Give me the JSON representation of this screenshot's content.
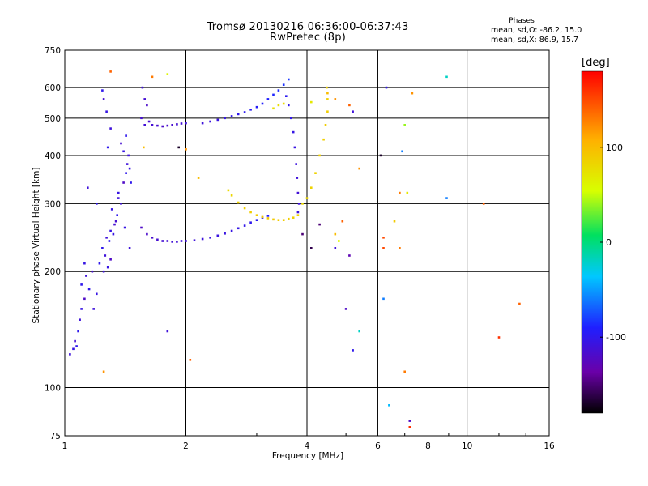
{
  "chart_data": {
    "type": "scatter",
    "title": "Tromsø 20130216 06:36:00-06:37:43",
    "subtitle": "RwPretec (8p)",
    "xlabel": "Frequency [MHz]",
    "ylabel": "Stationary phase Virtual Height [km]",
    "x_scale": "log",
    "y_scale": "log",
    "xlim": [
      1,
      16
    ],
    "ylim": [
      75,
      750
    ],
    "x_ticks": [
      1,
      2,
      4,
      6,
      8,
      10,
      16
    ],
    "y_ticks": [
      75,
      100,
      200,
      300,
      400,
      500,
      600,
      750
    ],
    "grid": true,
    "phase_stats": {
      "title": "Phases",
      "o_line": "mean, sd,O: -86.2, 15.0",
      "x_line": "mean, sd,X: 86.9, 15.7"
    },
    "colorbar": {
      "unit": "[deg]",
      "range": [
        -180,
        180
      ],
      "ticks": [
        100,
        0,
        -100
      ]
    },
    "series": [
      {
        "points": [
          [
            1.03,
            122,
            -110
          ],
          [
            1.05,
            126,
            -105
          ],
          [
            1.07,
            128,
            -100
          ],
          [
            1.06,
            132,
            -115
          ],
          [
            1.08,
            140,
            -100
          ],
          [
            1.09,
            150,
            -110
          ],
          [
            1.1,
            160,
            -105
          ],
          [
            1.12,
            170,
            -120
          ],
          [
            1.1,
            185,
            -100
          ],
          [
            1.13,
            195,
            -110
          ],
          [
            1.12,
            210,
            -105
          ],
          [
            1.15,
            180,
            -100
          ],
          [
            1.18,
            160,
            -110
          ],
          [
            1.2,
            175,
            -105
          ],
          [
            1.17,
            200,
            -115
          ],
          [
            1.22,
            210,
            -100
          ],
          [
            1.25,
            200,
            -110
          ],
          [
            1.28,
            205,
            -105
          ],
          [
            1.3,
            215,
            -120
          ],
          [
            1.24,
            230,
            -100
          ],
          [
            1.27,
            245,
            -110
          ],
          [
            1.3,
            255,
            -105
          ],
          [
            1.33,
            265,
            -115
          ],
          [
            1.35,
            280,
            -100
          ],
          [
            1.38,
            300,
            -110
          ],
          [
            1.36,
            320,
            -105
          ],
          [
            1.4,
            340,
            -120
          ],
          [
            1.42,
            360,
            -100
          ],
          [
            1.43,
            380,
            -110
          ],
          [
            1.4,
            410,
            -105
          ],
          [
            1.38,
            430,
            -115
          ],
          [
            1.42,
            450,
            -100
          ],
          [
            1.44,
            400,
            -110
          ],
          [
            1.45,
            370,
            -105
          ],
          [
            1.32,
            250,
            -105
          ],
          [
            1.26,
            220,
            -110
          ],
          [
            1.29,
            240,
            -100
          ],
          [
            1.34,
            270,
            -115
          ],
          [
            1.31,
            290,
            -105
          ],
          [
            1.36,
            310,
            -110
          ],
          [
            1.28,
            420,
            -100
          ],
          [
            1.3,
            470,
            -110
          ],
          [
            1.27,
            520,
            -105
          ],
          [
            1.25,
            560,
            -115
          ],
          [
            1.24,
            590,
            -100
          ],
          [
            1.14,
            330,
            -110
          ],
          [
            1.2,
            300,
            -100
          ],
          [
            1.45,
            230,
            -110
          ],
          [
            1.41,
            260,
            -105
          ],
          [
            1.46,
            340,
            -100
          ]
        ]
      },
      {
        "points": [
          [
            1.55,
            260,
            -120
          ],
          [
            1.6,
            250,
            -118
          ],
          [
            1.65,
            245,
            -116
          ],
          [
            1.7,
            242,
            -115
          ],
          [
            1.75,
            240,
            -114
          ],
          [
            1.8,
            240,
            -113
          ],
          [
            1.85,
            239,
            -112
          ],
          [
            1.9,
            239,
            -112
          ],
          [
            1.95,
            240,
            -111
          ],
          [
            2.0,
            240,
            -110
          ],
          [
            2.1,
            241,
            -110
          ],
          [
            2.2,
            243,
            -109
          ],
          [
            2.3,
            245,
            -108
          ],
          [
            2.4,
            248,
            -107
          ],
          [
            2.5,
            251,
            -106
          ],
          [
            2.6,
            255,
            -105
          ],
          [
            2.7,
            259,
            -104
          ],
          [
            2.8,
            263,
            -102
          ],
          [
            2.9,
            268,
            -100
          ],
          [
            3.0,
            272,
            -98
          ],
          [
            3.1,
            276,
            -96
          ],
          [
            3.2,
            279,
            -94
          ]
        ]
      },
      {
        "points": [
          [
            2.55,
            325,
            80
          ],
          [
            2.6,
            315,
            82
          ],
          [
            2.7,
            302,
            84
          ],
          [
            2.8,
            292,
            86
          ],
          [
            2.9,
            285,
            88
          ],
          [
            3.0,
            280,
            90
          ],
          [
            3.1,
            277,
            90
          ],
          [
            3.2,
            275,
            91
          ],
          [
            3.3,
            273,
            90
          ],
          [
            3.4,
            272,
            90
          ],
          [
            3.5,
            272,
            89
          ],
          [
            3.6,
            274,
            88
          ],
          [
            3.7,
            276,
            86
          ],
          [
            3.8,
            280,
            84
          ]
        ]
      },
      {
        "points": [
          [
            3.8,
            285,
            -108
          ],
          [
            3.82,
            300,
            -110
          ],
          [
            3.8,
            320,
            -112
          ],
          [
            3.78,
            350,
            -110
          ],
          [
            3.76,
            380,
            -108
          ],
          [
            3.73,
            420,
            -106
          ],
          [
            3.7,
            460,
            -104
          ],
          [
            3.65,
            500,
            -102
          ],
          [
            3.6,
            540,
            -100
          ],
          [
            3.55,
            570,
            -98
          ]
        ]
      },
      {
        "points": [
          [
            3.9,
            300,
            80
          ],
          [
            4.0,
            310,
            82
          ],
          [
            4.1,
            330,
            84
          ],
          [
            4.2,
            360,
            85
          ],
          [
            4.3,
            400,
            86
          ],
          [
            4.4,
            440,
            87
          ],
          [
            4.45,
            480,
            88
          ],
          [
            4.5,
            520,
            88
          ],
          [
            4.5,
            560,
            87
          ],
          [
            4.48,
            600,
            86
          ],
          [
            3.5,
            545,
            80
          ],
          [
            3.4,
            540,
            78
          ],
          [
            3.3,
            530,
            76
          ]
        ]
      },
      {
        "points": [
          [
            1.55,
            500,
            -115
          ],
          [
            1.58,
            480,
            -112
          ],
          [
            1.62,
            490,
            -116
          ],
          [
            1.65,
            480,
            -114
          ],
          [
            1.7,
            478,
            -116
          ],
          [
            1.75,
            476,
            -118
          ],
          [
            1.8,
            478,
            -117
          ],
          [
            1.85,
            480,
            -116
          ],
          [
            1.9,
            482,
            -114
          ],
          [
            1.95,
            484,
            -112
          ],
          [
            2.0,
            485,
            -110
          ],
          [
            1.58,
            560,
            -114
          ],
          [
            1.56,
            600,
            -110
          ],
          [
            1.6,
            540,
            -118
          ]
        ]
      },
      {
        "points": [
          [
            2.2,
            485,
            -110
          ],
          [
            2.3,
            490,
            -108
          ],
          [
            2.4,
            495,
            -106
          ],
          [
            2.5,
            500,
            -104
          ],
          [
            2.6,
            506,
            -102
          ],
          [
            2.7,
            512,
            -100
          ],
          [
            2.8,
            518,
            -98
          ],
          [
            2.9,
            526,
            -96
          ],
          [
            3.0,
            534,
            -94
          ],
          [
            3.1,
            545,
            -92
          ],
          [
            3.2,
            560,
            -90
          ],
          [
            3.3,
            575,
            -88
          ],
          [
            3.4,
            590,
            -86
          ],
          [
            3.5,
            610,
            -84
          ],
          [
            3.6,
            630,
            -82
          ]
        ]
      },
      {
        "points": [
          [
            1.3,
            660,
            140
          ],
          [
            1.25,
            110,
            120
          ],
          [
            1.57,
            420,
            100
          ],
          [
            1.65,
            640,
            130
          ],
          [
            1.8,
            650,
            60
          ],
          [
            1.8,
            140,
            -110
          ],
          [
            1.92,
            420,
            -170
          ],
          [
            2.0,
            415,
            120
          ],
          [
            2.05,
            118,
            140
          ],
          [
            2.15,
            350,
            100
          ],
          [
            3.9,
            250,
            -150
          ],
          [
            4.1,
            230,
            -160
          ],
          [
            4.3,
            265,
            -150
          ],
          [
            4.7,
            230,
            -110
          ],
          [
            4.7,
            250,
            100
          ],
          [
            4.8,
            240,
            60
          ],
          [
            4.9,
            270,
            140
          ],
          [
            5.1,
            220,
            -130
          ],
          [
            5.0,
            160,
            -120
          ],
          [
            5.2,
            125,
            -100
          ],
          [
            4.1,
            550,
            70
          ],
          [
            4.5,
            580,
            100
          ],
          [
            4.7,
            560,
            120
          ],
          [
            5.1,
            540,
            140
          ],
          [
            5.2,
            520,
            -110
          ],
          [
            5.4,
            370,
            120
          ],
          [
            6.2,
            230,
            150
          ],
          [
            6.1,
            400,
            -170
          ],
          [
            6.3,
            600,
            -100
          ],
          [
            6.4,
            90,
            -40
          ],
          [
            6.8,
            230,
            130
          ],
          [
            6.9,
            410,
            -60
          ],
          [
            7.0,
            480,
            40
          ],
          [
            7.1,
            320,
            70
          ],
          [
            7.3,
            580,
            120
          ],
          [
            7.3,
            580,
            120
          ],
          [
            7.0,
            110,
            130
          ],
          [
            7.2,
            82,
            -120
          ],
          [
            7.2,
            79,
            160
          ],
          [
            8.9,
            640,
            -20
          ],
          [
            8.9,
            310,
            -60
          ],
          [
            11.0,
            300,
            140
          ],
          [
            12.0,
            135,
            160
          ],
          [
            13.5,
            165,
            140
          ],
          [
            6.2,
            170,
            -60
          ],
          [
            5.4,
            140,
            -20
          ],
          [
            6.2,
            245,
            150
          ],
          [
            6.8,
            320,
            130
          ],
          [
            6.6,
            270,
            90
          ]
        ]
      }
    ]
  }
}
